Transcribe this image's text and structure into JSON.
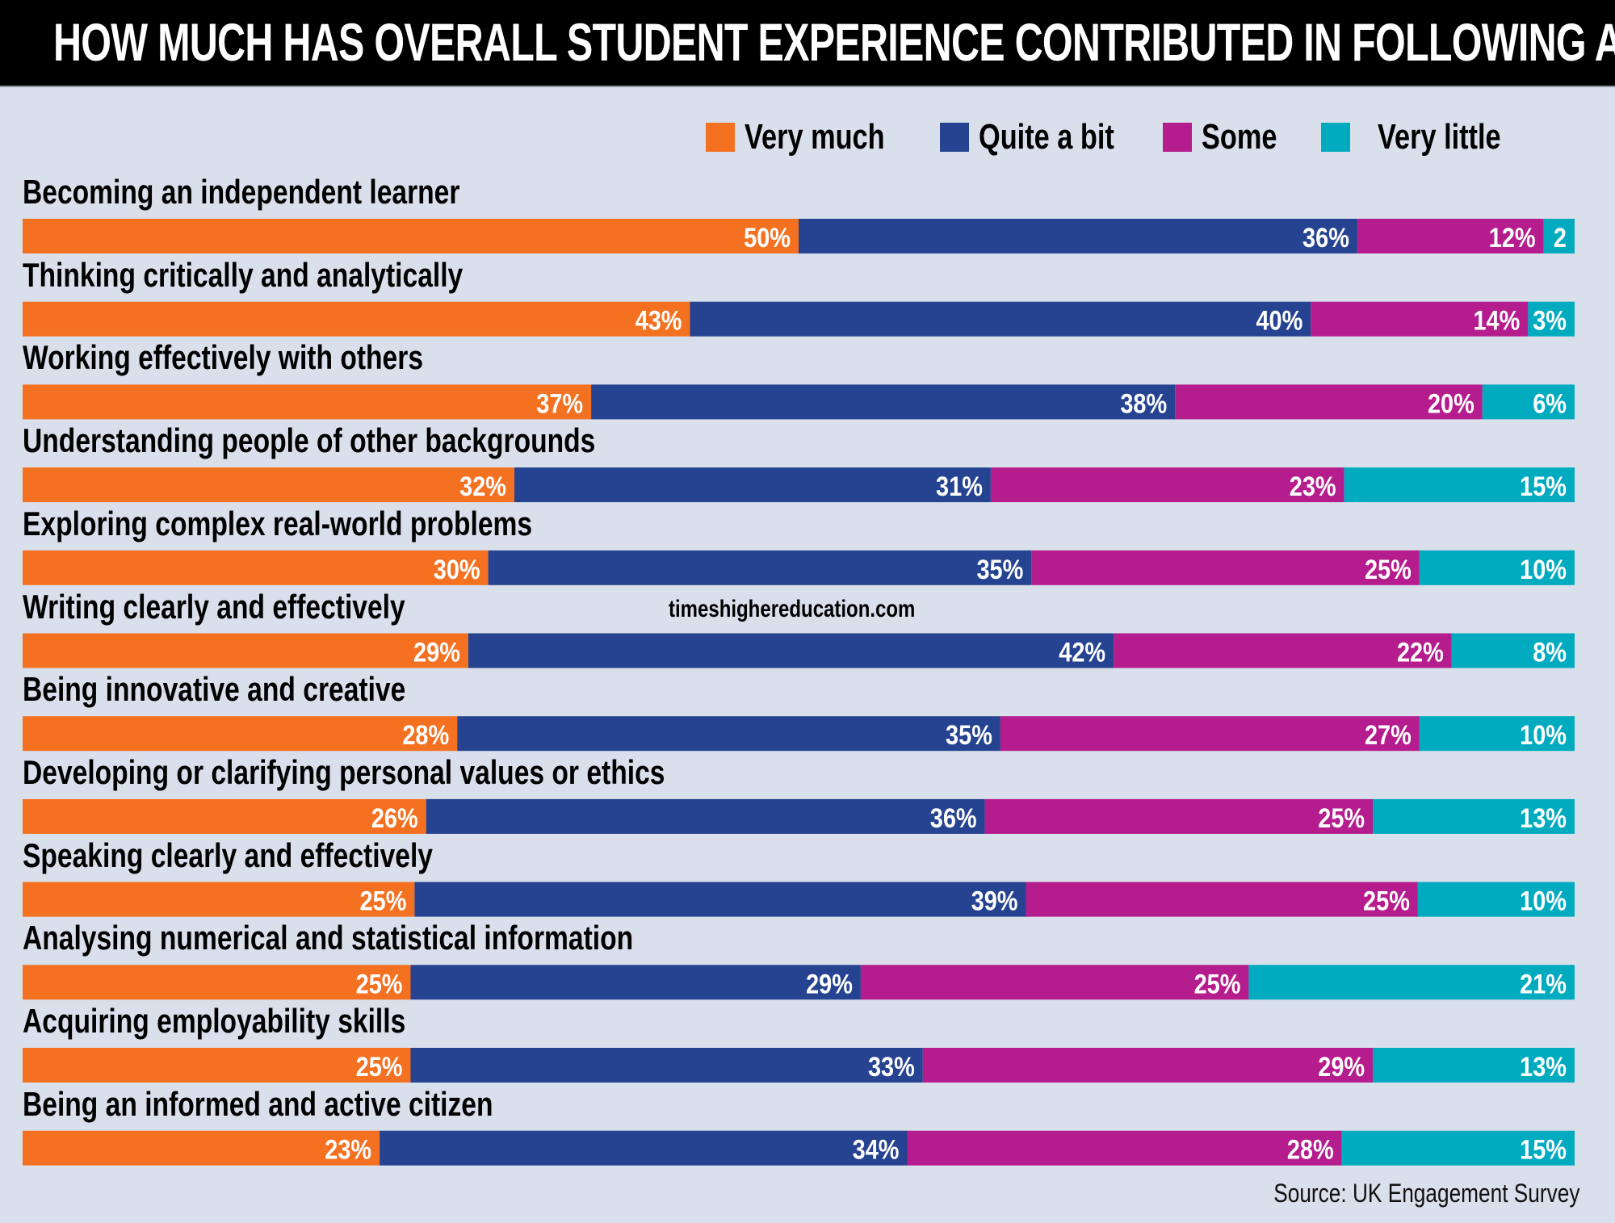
{
  "header": {
    "title": "HOW MUCH HAS OVERALL STUDENT EXPERIENCE CONTRIBUTED IN FOLLOWING AREAS?"
  },
  "watermark": "timeshighereducation.com",
  "source": "Source: UK Engagement Survey",
  "chart_data": {
    "type": "bar",
    "orientation": "horizontal",
    "stacked": true,
    "title": "HOW MUCH HAS OVERALL STUDENT EXPERIENCE CONTRIBUTED IN FOLLOWING AREAS?",
    "xlabel": "",
    "ylabel": "",
    "xlim": [
      0,
      100
    ],
    "grid": false,
    "legend_position": "top-right",
    "categories": [
      "Becoming an independent learner",
      "Thinking critically and analytically",
      "Working effectively with others",
      "Understanding people of other backgrounds",
      "Exploring complex real-world problems",
      "Writing clearly and effectively",
      "Being innovative and creative",
      "Developing or clarifying personal values or ethics",
      "Speaking clearly and effectively",
      "Analysing numerical and statistical information",
      "Acquiring employability skills",
      "Being an informed and active citizen"
    ],
    "series": [
      {
        "name": "Very much",
        "color": "#f47121",
        "values": [
          50,
          43,
          37,
          32,
          30,
          29,
          28,
          26,
          25,
          25,
          25,
          23
        ],
        "labels": [
          "50%",
          "43%",
          "37%",
          "32%",
          "30%",
          "29%",
          "28%",
          "26%",
          "25%",
          "25%",
          "25%",
          "23%"
        ]
      },
      {
        "name": "Quite a bit",
        "color": "#264391",
        "values": [
          36,
          40,
          38,
          31,
          35,
          42,
          35,
          36,
          39,
          29,
          33,
          34
        ],
        "labels": [
          "36%",
          "40%",
          "38%",
          "31%",
          "35%",
          "42%",
          "35%",
          "36%",
          "39%",
          "29%",
          "33%",
          "34%"
        ]
      },
      {
        "name": "Some",
        "color": "#b51c8d",
        "values": [
          12,
          14,
          20,
          23,
          25,
          22,
          27,
          25,
          25,
          25,
          29,
          28
        ],
        "labels": [
          "12%",
          "14%",
          "20%",
          "23%",
          "25%",
          "22%",
          "27%",
          "25%",
          "25%",
          "25%",
          "29%",
          "28%"
        ]
      },
      {
        "name": "Very little",
        "color": "#00abc0",
        "values": [
          2,
          3,
          6,
          15,
          10,
          8,
          10,
          13,
          10,
          21,
          13,
          15
        ],
        "labels": [
          "2",
          "3%",
          "6%",
          "15%",
          "10%",
          "8%",
          "10%",
          "13%",
          "10%",
          "21%",
          "13%",
          "15%"
        ]
      }
    ]
  }
}
